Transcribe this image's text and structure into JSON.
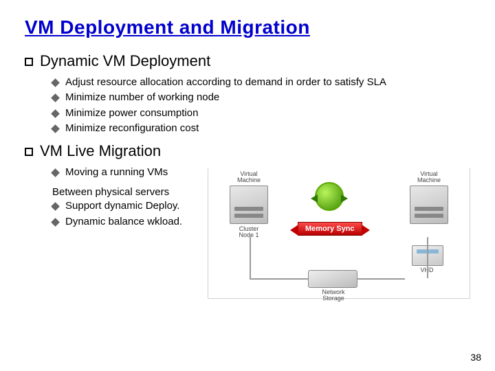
{
  "title": "VM Deployment and Migration",
  "sections": [
    {
      "heading": "Dynamic VM Deployment",
      "items": [
        "Adjust resource allocation  according to demand in order to satisfy SLA",
        "Minimize number of working node",
        "Minimize power consumption",
        "Minimize reconfiguration cost"
      ]
    },
    {
      "heading": "VM Live Migration",
      "items": [
        "Moving a running VMs",
        "Support dynamic Deploy.",
        "Dynamic balance wkload."
      ],
      "between_line": "Between physical servers"
    }
  ],
  "diagram": {
    "vm_label": "Virtual\nMachine",
    "node1_caption": "Cluster\nNode 1",
    "node2_caption": "",
    "mem_sync": "Memory Sync",
    "vhd": "VHD",
    "storage_caption": "Network\nStorage"
  },
  "page_number": "38",
  "colors": {
    "title": "#0000cc",
    "bullet_diamond": "#666666",
    "mem_sync_bg": "#c00000",
    "green_circle": "#5aa800"
  }
}
